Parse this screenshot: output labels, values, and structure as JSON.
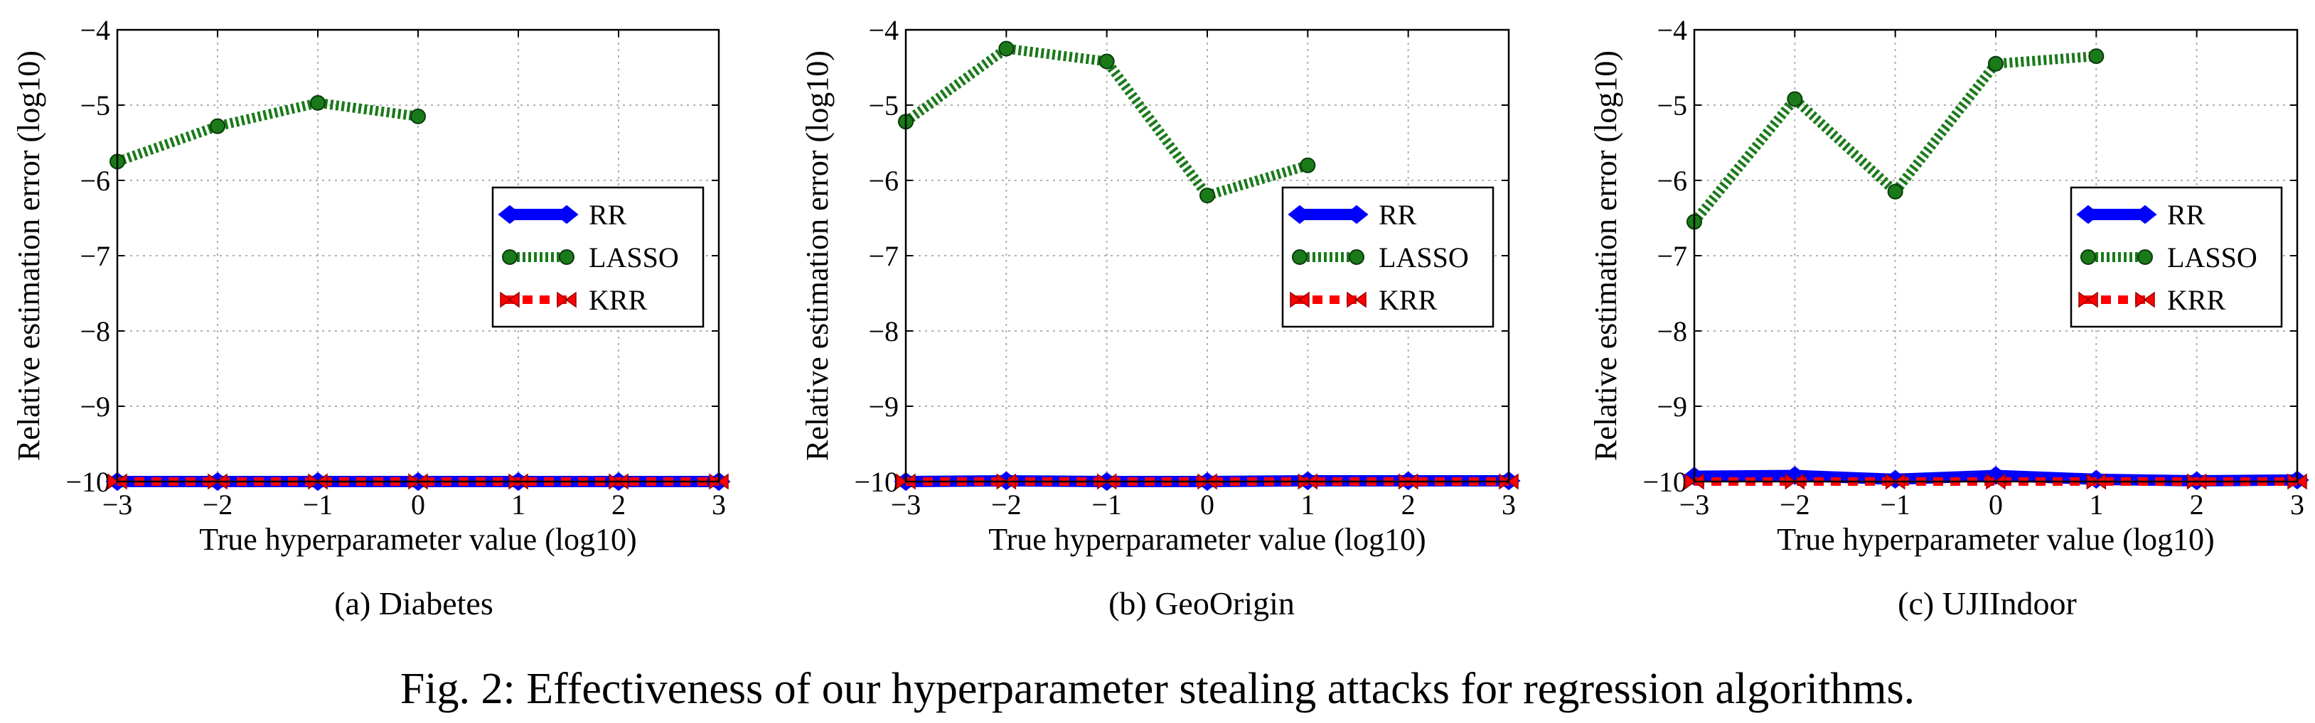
{
  "figure": {
    "caption": "Fig. 2: Effectiveness of our hyperparameter stealing attacks for regression algorithms."
  },
  "colors": {
    "RR": "#0000ff",
    "LASSO": "#1a7a1a",
    "KRR": "#ff0000",
    "marker_edge": "#0a3a0a",
    "grid": "#b0b0b0"
  },
  "chart_data": [
    {
      "type": "line",
      "subcaption": "(a) Diabetes",
      "xlabel": "True hyperparameter value (log10)",
      "ylabel": "Relative estimation error (log10)",
      "xlim": [
        -3,
        3
      ],
      "ylim": [
        -10,
        -4
      ],
      "xticks": [
        -3,
        -2,
        -1,
        0,
        1,
        2,
        3
      ],
      "yticks": [
        -10,
        -9,
        -8,
        -7,
        -6,
        -5,
        -4
      ],
      "xtick_labels": [
        "−3",
        "−2",
        "−1",
        "0",
        "1",
        "2",
        "3"
      ],
      "ytick_labels": [
        "−10",
        "−9",
        "−8",
        "−7",
        "−6",
        "−5",
        "−4"
      ],
      "grid": true,
      "legend": "center-right",
      "series": [
        {
          "name": "RR",
          "x": [
            -3,
            -2,
            -1,
            0,
            1,
            2,
            3
          ],
          "values": [
            -10,
            -10,
            -10,
            -10,
            -10,
            -10,
            -10
          ]
        },
        {
          "name": "LASSO",
          "x": [
            -3,
            -2,
            -1,
            0
          ],
          "values": [
            -5.75,
            -5.28,
            -4.97,
            -5.15
          ]
        },
        {
          "name": "KRR",
          "x": [
            -3,
            -2,
            -1,
            0,
            1,
            2,
            3
          ],
          "values": [
            -10,
            -10,
            -10,
            -10,
            -10,
            -10,
            -10
          ]
        }
      ]
    },
    {
      "type": "line",
      "subcaption": "(b) GeoOrigin",
      "xlabel": "True hyperparameter value (log10)",
      "ylabel": "Relative estimation error (log10)",
      "xlim": [
        -3,
        3
      ],
      "ylim": [
        -10,
        -4
      ],
      "xticks": [
        -3,
        -2,
        -1,
        0,
        1,
        2,
        3
      ],
      "yticks": [
        -10,
        -9,
        -8,
        -7,
        -6,
        -5,
        -4
      ],
      "xtick_labels": [
        "−3",
        "−2",
        "−1",
        "0",
        "1",
        "2",
        "3"
      ],
      "ytick_labels": [
        "−10",
        "−9",
        "−8",
        "−7",
        "−6",
        "−5",
        "−4"
      ],
      "grid": true,
      "legend": "center-right",
      "series": [
        {
          "name": "RR",
          "x": [
            -3,
            -2,
            -1,
            0,
            1,
            2,
            3
          ],
          "values": [
            -10,
            -9.99,
            -10,
            -10,
            -9.99,
            -9.99,
            -9.99
          ]
        },
        {
          "name": "LASSO",
          "x": [
            -3,
            -2,
            -1,
            0,
            1
          ],
          "values": [
            -5.22,
            -4.25,
            -4.42,
            -6.2,
            -5.8
          ]
        },
        {
          "name": "KRR",
          "x": [
            -3,
            -2,
            -1,
            0,
            1,
            2,
            3
          ],
          "values": [
            -10,
            -10,
            -10,
            -10,
            -10,
            -10,
            -10
          ]
        }
      ]
    },
    {
      "type": "line",
      "subcaption": "(c) UJIIndoor",
      "xlabel": "True hyperparameter value (log10)",
      "ylabel": "Relative estimation error (log10)",
      "xlim": [
        -3,
        3
      ],
      "ylim": [
        -10,
        -4
      ],
      "xticks": [
        -3,
        -2,
        -1,
        0,
        1,
        2,
        3
      ],
      "yticks": [
        -10,
        -9,
        -8,
        -7,
        -6,
        -5,
        -4
      ],
      "xtick_labels": [
        "−3",
        "−2",
        "−1",
        "0",
        "1",
        "2",
        "3"
      ],
      "ytick_labels": [
        "−10",
        "−9",
        "−8",
        "−7",
        "−6",
        "−5",
        "−4"
      ],
      "grid": true,
      "legend": "center-right",
      "series": [
        {
          "name": "RR",
          "x": [
            -3,
            -2,
            -1,
            0,
            1,
            2,
            3
          ],
          "values": [
            -9.93,
            -9.92,
            -9.97,
            -9.92,
            -9.97,
            -9.99,
            -9.98
          ]
        },
        {
          "name": "LASSO",
          "x": [
            -3,
            -2,
            -1,
            0,
            1
          ],
          "values": [
            -6.55,
            -4.92,
            -6.15,
            -4.45,
            -4.35
          ]
        },
        {
          "name": "KRR",
          "x": [
            -3,
            -2,
            -1,
            0,
            1,
            2,
            3
          ],
          "values": [
            -10,
            -10,
            -10,
            -10,
            -10,
            -10,
            -10
          ]
        }
      ]
    }
  ]
}
